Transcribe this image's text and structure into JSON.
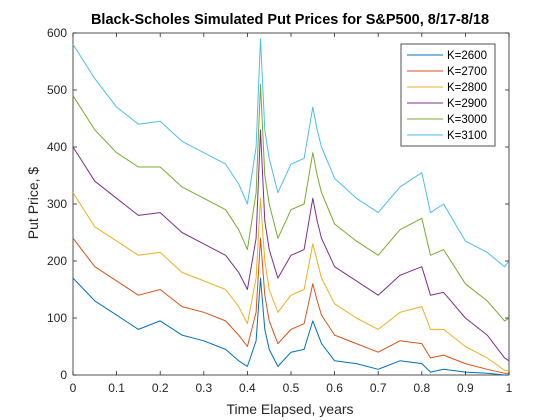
{
  "chart_data": {
    "type": "line",
    "title": "Black-Scholes Simulated Put Prices for S&P500, 8/17-8/18",
    "xlabel": "Time Elapsed, years",
    "ylabel": "Put Price, $",
    "xlim": [
      0,
      1
    ],
    "ylim": [
      0,
      600
    ],
    "xticks": [
      "0",
      "0.1",
      "0.2",
      "0.3",
      "0.4",
      "0.5",
      "0.6",
      "0.7",
      "0.8",
      "0.9",
      "1"
    ],
    "yticks": [
      "0",
      "100",
      "200",
      "300",
      "400",
      "500",
      "600"
    ],
    "grid": false,
    "legend_position": "top-right",
    "x": [
      0,
      0.05,
      0.1,
      0.15,
      0.2,
      0.25,
      0.3,
      0.35,
      0.38,
      0.4,
      0.42,
      0.43,
      0.44,
      0.45,
      0.47,
      0.5,
      0.53,
      0.55,
      0.56,
      0.57,
      0.6,
      0.65,
      0.7,
      0.75,
      0.8,
      0.82,
      0.85,
      0.9,
      0.95,
      0.99,
      1.0
    ],
    "series": [
      {
        "name": "K=2600",
        "color": "#0072BD",
        "values": [
          170,
          130,
          105,
          80,
          95,
          70,
          60,
          45,
          25,
          15,
          60,
          170,
          80,
          45,
          15,
          40,
          45,
          95,
          75,
          55,
          25,
          20,
          10,
          25,
          20,
          5,
          10,
          5,
          3,
          0,
          0
        ]
      },
      {
        "name": "K=2700",
        "color": "#D95319",
        "values": [
          240,
          190,
          165,
          140,
          150,
          120,
          110,
          95,
          70,
          50,
          110,
          240,
          140,
          95,
          55,
          80,
          90,
          160,
          130,
          105,
          70,
          55,
          40,
          60,
          55,
          30,
          35,
          20,
          10,
          3,
          3
        ]
      },
      {
        "name": "K=2800",
        "color": "#EDB120",
        "values": [
          320,
          260,
          235,
          210,
          215,
          180,
          165,
          150,
          120,
          90,
          170,
          310,
          200,
          150,
          110,
          140,
          150,
          230,
          200,
          170,
          125,
          100,
          80,
          110,
          120,
          80,
          80,
          50,
          30,
          8,
          8
        ]
      },
      {
        "name": "K=2900",
        "color": "#7E2F8E",
        "values": [
          400,
          340,
          310,
          280,
          285,
          250,
          230,
          210,
          180,
          150,
          240,
          430,
          270,
          220,
          170,
          210,
          220,
          310,
          270,
          240,
          190,
          165,
          140,
          175,
          190,
          140,
          145,
          100,
          70,
          30,
          25
        ]
      },
      {
        "name": "K=3000",
        "color": "#77AC30",
        "values": [
          490,
          430,
          390,
          365,
          365,
          330,
          310,
          290,
          255,
          220,
          320,
          510,
          350,
          300,
          240,
          290,
          300,
          390,
          350,
          320,
          265,
          235,
          210,
          255,
          275,
          210,
          220,
          160,
          130,
          95,
          100
        ]
      },
      {
        "name": "K=3100",
        "color": "#4DBEEE",
        "values": [
          580,
          520,
          470,
          440,
          445,
          410,
          390,
          370,
          335,
          300,
          400,
          590,
          430,
          380,
          320,
          370,
          380,
          470,
          430,
          400,
          345,
          310,
          285,
          330,
          355,
          285,
          300,
          235,
          215,
          190,
          200
        ]
      }
    ]
  }
}
